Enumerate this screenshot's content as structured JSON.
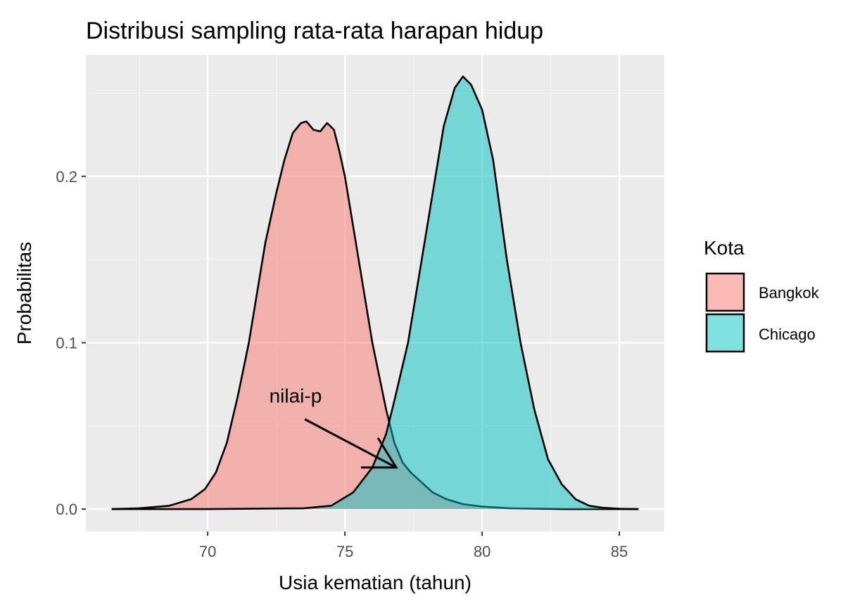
{
  "chart_data": {
    "type": "area",
    "title": "Distribusi sampling rata-rata harapan hidup",
    "xlabel": "Usia kematian (tahun)",
    "ylabel": "Probabilitas",
    "xlim": [
      65.56,
      86.64
    ],
    "ylim": [
      -0.0135,
      0.273
    ],
    "x_ticks": [
      70,
      75,
      80,
      85
    ],
    "x_tick_labels": [
      "70",
      "75",
      "80",
      "85"
    ],
    "y_ticks": [
      0.0,
      0.1,
      0.2
    ],
    "y_tick_labels": [
      "0.0",
      "0.1",
      "0.2"
    ],
    "grid": true,
    "legend": {
      "title": "Kota",
      "placement": "right"
    },
    "annotation": {
      "text": "nilai-p",
      "text_x": 73.2,
      "text_y": 0.064,
      "arrow_from": [
        73.54,
        0.054
      ],
      "arrow_to": [
        76.87,
        0.025
      ]
    },
    "series": [
      {
        "name": "Bangkok",
        "color": "#F8766D",
        "x": [
          66.5,
          67.5,
          68.6,
          69.4,
          69.9,
          70.3,
          70.7,
          71.1,
          71.5,
          72.1,
          72.5,
          72.8,
          73.1,
          73.4,
          73.6,
          73.85,
          74.1,
          74.35,
          74.6,
          74.8,
          75.0,
          75.5,
          76.0,
          76.5,
          76.8,
          77.1,
          77.4,
          77.8,
          78.2,
          78.7,
          79.3,
          80.0,
          81.0,
          83.0,
          85.7
        ],
        "y": [
          0,
          0.0005,
          0.002,
          0.006,
          0.012,
          0.022,
          0.04,
          0.068,
          0.1,
          0.16,
          0.19,
          0.21,
          0.226,
          0.232,
          0.233,
          0.228,
          0.227,
          0.232,
          0.228,
          0.215,
          0.2,
          0.15,
          0.1,
          0.06,
          0.04,
          0.028,
          0.022,
          0.016,
          0.01,
          0.006,
          0.003,
          0.0015,
          0.0005,
          0,
          0
        ]
      },
      {
        "name": "Chicago",
        "color": "#00BFC4",
        "x": [
          66.5,
          70.0,
          73.5,
          74.5,
          75.3,
          76.0,
          76.5,
          76.8,
          77.3,
          77.8,
          78.2,
          78.6,
          79.0,
          79.3,
          79.6,
          80.0,
          80.4,
          80.9,
          81.4,
          81.9,
          82.4,
          82.9,
          83.4,
          83.9,
          84.4,
          85.0,
          85.7
        ],
        "y": [
          0,
          0,
          0.0005,
          0.002,
          0.01,
          0.025,
          0.045,
          0.065,
          0.1,
          0.15,
          0.19,
          0.23,
          0.253,
          0.26,
          0.255,
          0.24,
          0.21,
          0.15,
          0.1,
          0.06,
          0.03,
          0.015,
          0.006,
          0.002,
          0.0008,
          0.0002,
          0
        ]
      }
    ]
  }
}
